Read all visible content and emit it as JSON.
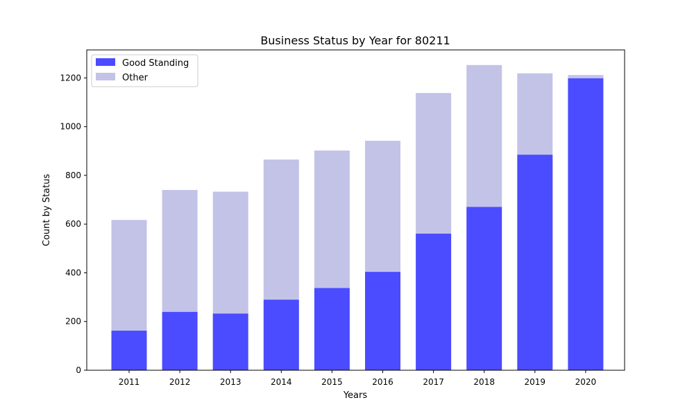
{
  "chart_data": {
    "type": "bar",
    "stacked": true,
    "title": "Business Status by Year for 80211",
    "xlabel": "Years",
    "ylabel": "Count by Status",
    "categories": [
      "2011",
      "2012",
      "2013",
      "2014",
      "2015",
      "2016",
      "2017",
      "2018",
      "2019",
      "2020"
    ],
    "series": [
      {
        "name": "Good Standing",
        "color": "#4b4bff",
        "values": [
          163,
          240,
          233,
          290,
          338,
          404,
          561,
          671,
          885,
          1199
        ]
      },
      {
        "name": "Other",
        "color": "#c3c3e8",
        "values": [
          454,
          500,
          500,
          575,
          564,
          538,
          577,
          582,
          334,
          13
        ]
      }
    ],
    "ylim": [
      0,
      1315
    ],
    "yticks": [
      0,
      200,
      400,
      600,
      800,
      1000,
      1200
    ],
    "grid": false,
    "legend_position": "top-left"
  }
}
